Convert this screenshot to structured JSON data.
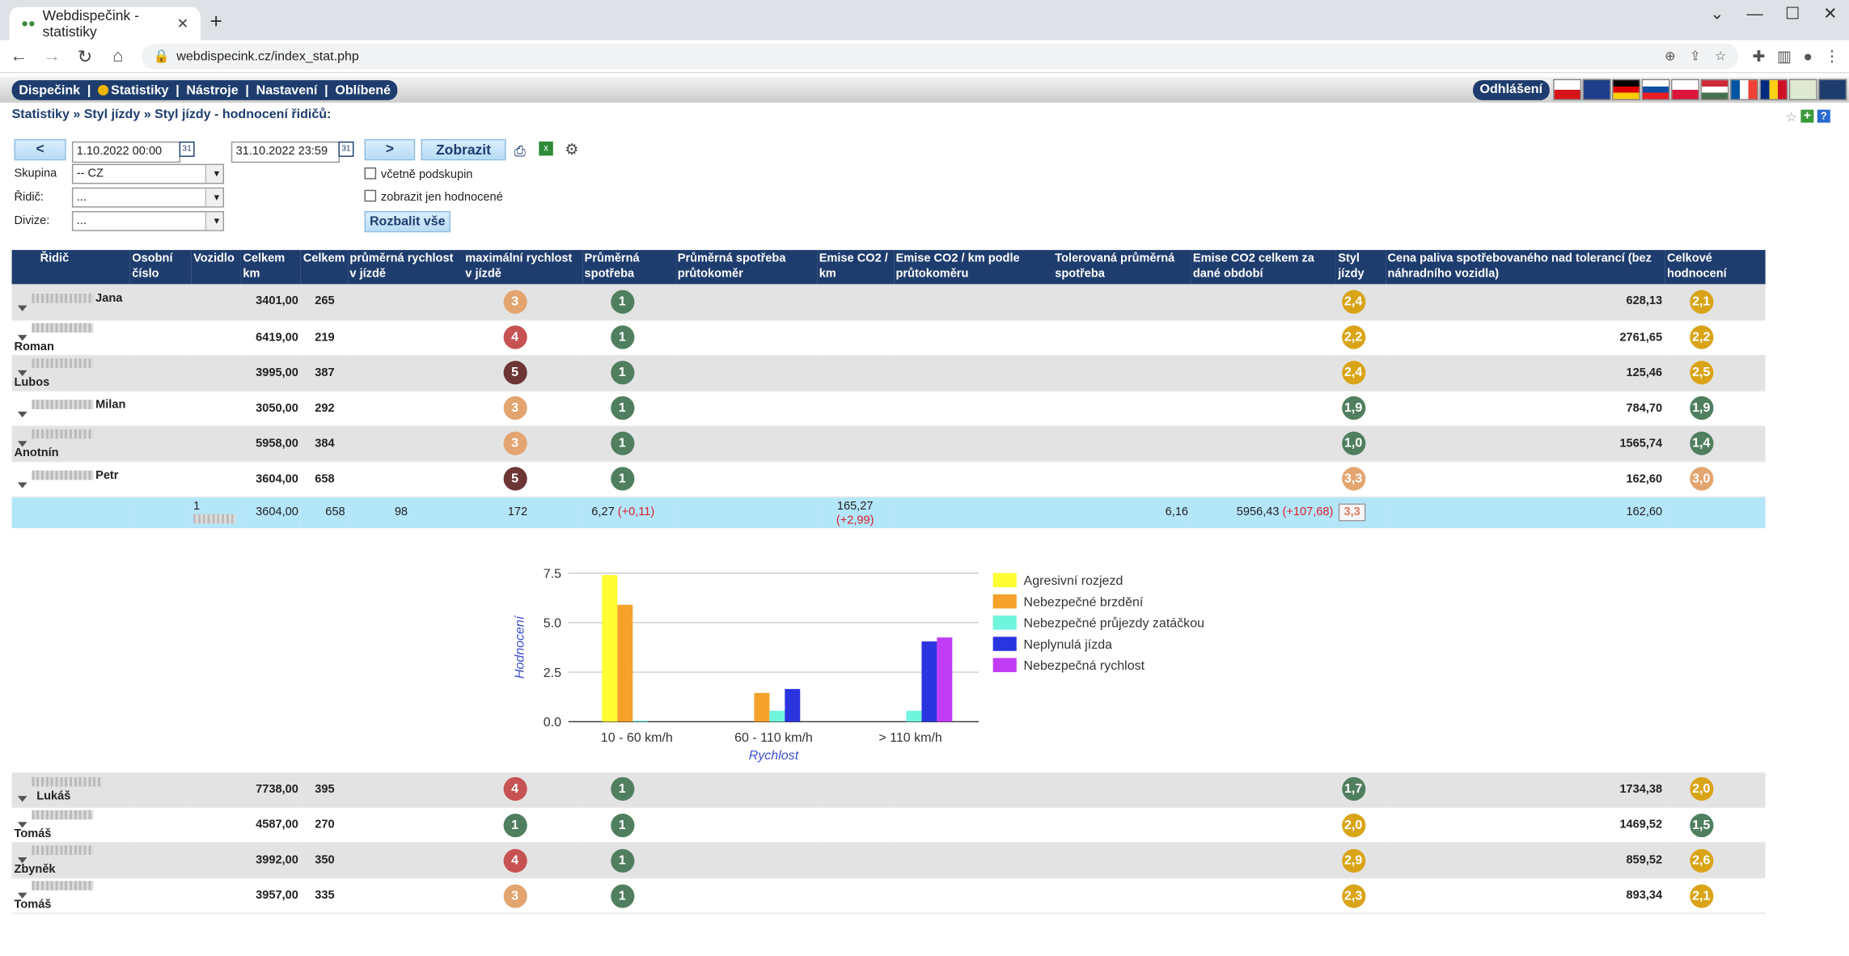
{
  "browser": {
    "tab_title": "Webdispečink - statistiky",
    "url": "webdispecink.cz/index_stat.php"
  },
  "menu": {
    "items": [
      "Dispečink",
      "Statistiky",
      "Nástroje",
      "Nastavení",
      "Oblíbené"
    ],
    "separator": "|",
    "logout": "Odhlášení"
  },
  "breadcrumb": "Statistiky » Styl jízdy » Styl jízdy - hodnocení řidičů:",
  "filters": {
    "prev": "<",
    "next": ">",
    "date_from": "1.10.2022 00:00",
    "date_to": "31.10.2022 23:59",
    "show_button": "Zobrazit",
    "cal": "31",
    "group_label": "Skupina",
    "group_value": "-- CZ",
    "driver_label": "Řidič:",
    "driver_value": "...",
    "division_label": "Divize:",
    "division_value": "...",
    "include_subgroups": "včetně podskupin",
    "only_rated": "zobrazit jen hodnocené",
    "expand_all": "Rozbalit vše"
  },
  "table": {
    "headers": [
      "Řidič",
      "Osobní číslo",
      "Vozidlo",
      "Celkem km",
      "Celkem",
      "průměrná rychlost v jízdě",
      "maximální rychlost v jízdě",
      "Průměrná spotřeba",
      "Průměrná spotřeba průtokoměr",
      "Emise CO2 / km",
      "Emise CO2 / km podle průtokoměru",
      "Tolerovaná průměrná spotřeba",
      "Emise CO2 celkem za dané období",
      "Styl jízdy",
      "Cena paliva spotřebovaného nad tolerancí (bez náhradního vozidla)",
      "Celkové hodnocení"
    ],
    "rows": [
      {
        "name": "Jana",
        "km": "3401,00",
        "total": "265",
        "maxspeed": "3",
        "consumption": "1",
        "style": "2,4",
        "cost": "628,13",
        "overall": "2,1"
      },
      {
        "name": "Roman",
        "km": "6419,00",
        "total": "219",
        "maxspeed": "4",
        "consumption": "1",
        "style": "2,2",
        "cost": "2761,65",
        "overall": "2,2"
      },
      {
        "name": "Lubos",
        "km": "3995,00",
        "total": "387",
        "maxspeed": "5",
        "consumption": "1",
        "style": "2,4",
        "cost": "125,46",
        "overall": "2,5"
      },
      {
        "name": "Milan",
        "km": "3050,00",
        "total": "292",
        "maxspeed": "3",
        "consumption": "1",
        "style": "1,9",
        "cost": "784,70",
        "overall": "1,9"
      },
      {
        "name": "Anotnín",
        "km": "5958,00",
        "total": "384",
        "maxspeed": "3",
        "consumption": "1",
        "style": "1,0",
        "cost": "1565,74",
        "overall": "1,4"
      },
      {
        "name": "Petr",
        "km": "3604,00",
        "total": "658",
        "maxspeed": "5",
        "consumption": "1",
        "style": "3,3",
        "cost": "162,60",
        "overall": "3,0"
      }
    ],
    "detail": {
      "vehicle": "1",
      "km": "3604,00",
      "total": "658",
      "avg_speed": "98",
      "max_speed": "172",
      "consumption": "6,27",
      "consumption_diff": "(+0,11)",
      "co2_km": "165,27",
      "co2_km_diff": "(+2,99)",
      "tolerated": "6,16",
      "co2_total": "5956,43",
      "co2_total_diff": "(+107,68)",
      "style": "3,3",
      "cost": "162,60"
    },
    "rows_after": [
      {
        "name": "Lukáš",
        "km": "7738,00",
        "total": "395",
        "maxspeed": "4",
        "consumption": "1",
        "style": "1,7",
        "cost": "1734,38",
        "overall": "2,0"
      },
      {
        "name": "Tomáš",
        "km": "4587,00",
        "total": "270",
        "maxspeed": "1",
        "consumption": "1",
        "style": "2,0",
        "cost": "1469,52",
        "overall": "1,5"
      },
      {
        "name": "Zbyněk",
        "km": "3992,00",
        "total": "350",
        "maxspeed": "4",
        "consumption": "1",
        "style": "2,9",
        "cost": "859,52",
        "overall": "2,6"
      },
      {
        "name": "Tomáš",
        "km": "3957,00",
        "total": "335",
        "maxspeed": "3",
        "consumption": "1",
        "style": "2,3",
        "cost": "893,34",
        "overall": "2,1"
      }
    ]
  },
  "colors": {
    "badge_1": "#4f7f5e",
    "badge_3": "#e3a46f",
    "badge_4": "#c65252",
    "badge_5": "#6e3535",
    "badge_style": "#d9a418"
  },
  "chart_data": {
    "type": "bar",
    "categories": [
      "10 - 60 km/h",
      "60 - 110 km/h",
      "> 110 km/h"
    ],
    "series": [
      {
        "name": "Agresivní rozjezd",
        "color": "#ffff33",
        "values": [
          7.4,
          0,
          0
        ]
      },
      {
        "name": "Nebezpečné brzdění",
        "color": "#f5a12a",
        "values": [
          5.9,
          1.45,
          0
        ]
      },
      {
        "name": "Nebezpečné průjezdy zatáčkou",
        "color": "#6ff5dc",
        "values": [
          0.05,
          0.55,
          0.55
        ]
      },
      {
        "name": "Neplynulá jízda",
        "color": "#2a35e0",
        "values": [
          0,
          1.65,
          4.05
        ]
      },
      {
        "name": "Nebezpečná rychlost",
        "color": "#c03cf5",
        "values": [
          0,
          0,
          4.25
        ]
      }
    ],
    "xlabel": "Rychlost",
    "ylabel": "Hodnocení",
    "ylim": [
      0,
      7.5
    ],
    "yticks": [
      "0.0",
      "2.5",
      "5.0",
      "7.5"
    ],
    "legend": "right"
  }
}
